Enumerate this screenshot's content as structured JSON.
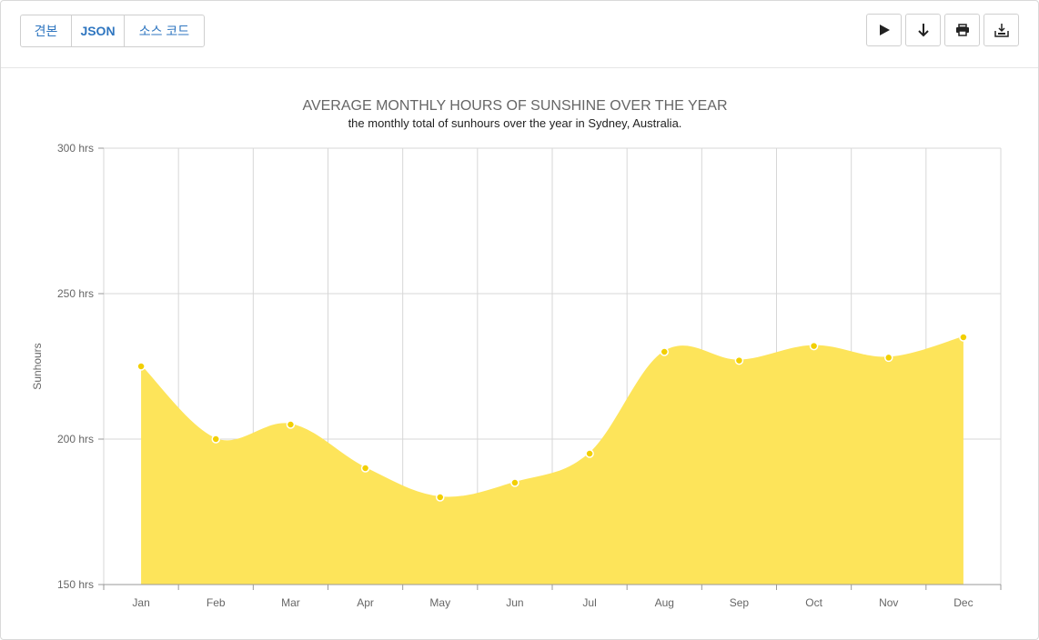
{
  "toolbar": {
    "tabs": [
      {
        "id": "view",
        "label": "견본"
      },
      {
        "id": "json",
        "label": "JSON"
      },
      {
        "id": "source",
        "label": "소스 코드"
      }
    ],
    "actions": [
      {
        "name": "play-icon"
      },
      {
        "name": "download-arrow-icon"
      },
      {
        "name": "print-icon"
      },
      {
        "name": "export-icon"
      }
    ]
  },
  "chart_data": {
    "type": "area",
    "title": "AVERAGE MONTHLY HOURS OF SUNSHINE OVER THE YEAR",
    "subtitle": "the monthly total of sunhours over the year in Sydney, Australia.",
    "ylabel": "Sunhours",
    "xlabel": "",
    "categories": [
      "Jan",
      "Feb",
      "Mar",
      "Apr",
      "May",
      "Jun",
      "Jul",
      "Aug",
      "Sep",
      "Oct",
      "Nov",
      "Dec"
    ],
    "values": [
      225,
      200,
      205,
      190,
      180,
      185,
      195,
      230,
      227,
      232,
      228,
      235
    ],
    "ylim": [
      150,
      300
    ],
    "yticks": [
      150,
      200,
      250,
      300
    ],
    "ytick_suffix": " hrs",
    "grid": true,
    "smooth": true,
    "fill_color": "#fde45a",
    "marker_color": "#f2cf00",
    "grid_color": "#d7d7d7"
  }
}
